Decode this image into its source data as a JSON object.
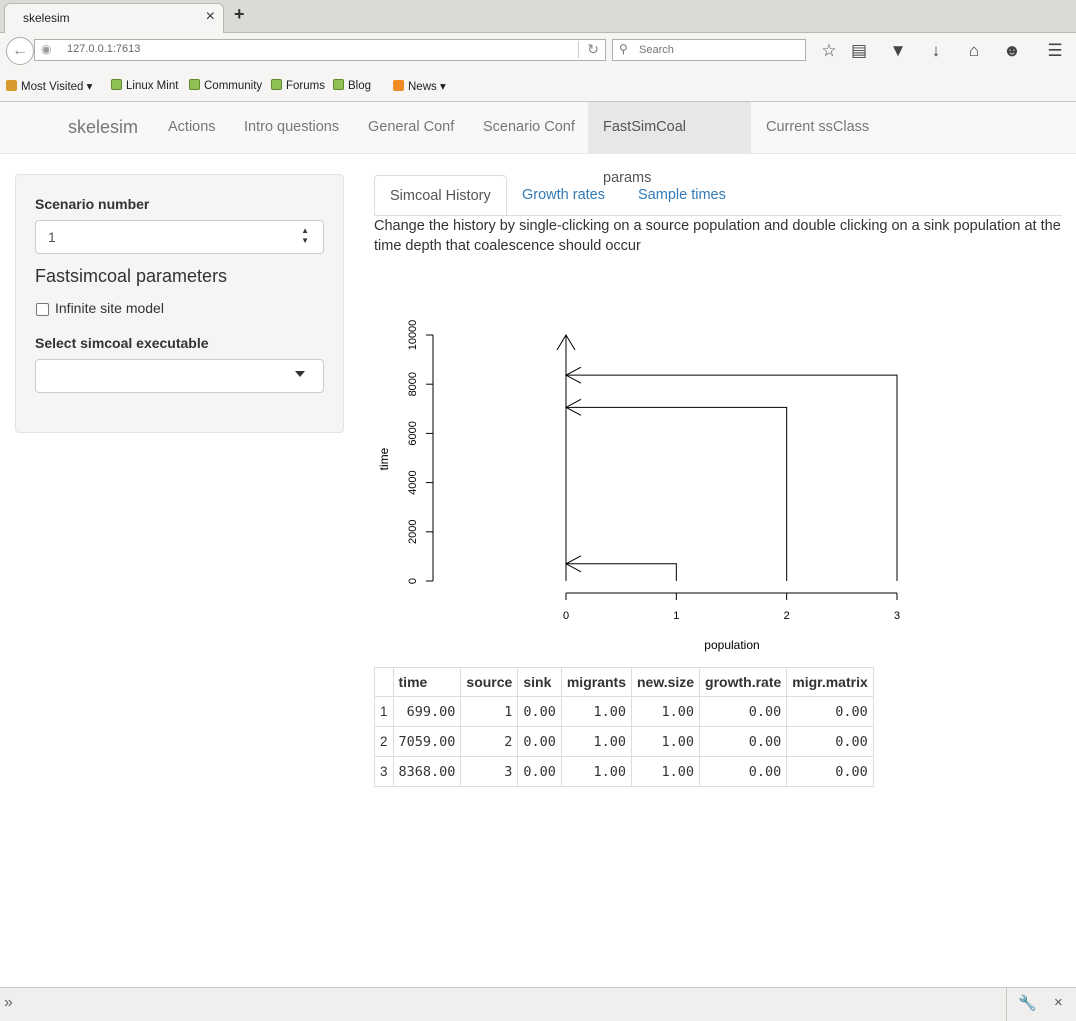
{
  "browser": {
    "tab_title": "skelesim",
    "tab_close": "×",
    "new_tab": "+",
    "url": "127.0.0.1:7613",
    "search_placeholder": "Search",
    "bookmarks": [
      "Most Visited",
      "Linux Mint",
      "Community",
      "Forums",
      "Blog",
      "News"
    ]
  },
  "app": {
    "brand": "skelesim",
    "nav": [
      "Actions",
      "Intro questions",
      "General Conf",
      "Scenario Conf",
      "FastSimCoal params",
      "Current ssClass"
    ],
    "active_nav": "FastSimCoal params"
  },
  "sidebar": {
    "scenario_label": "Scenario number",
    "scenario_value": "1",
    "section_title": "Fastsimcoal parameters",
    "infinite_site_label": "Infinite site model",
    "infinite_site_checked": false,
    "executable_label": "Select simcoal executable",
    "executable_value": ""
  },
  "tabs": [
    "Simcoal History",
    "Growth rates",
    "Sample times"
  ],
  "active_tab": "Simcoal History",
  "instruction": "Change the history by single-clicking on a source population and double clicking on a sink population at the time depth that coalescence should occur",
  "chart_data": {
    "type": "line",
    "xlabel": "population",
    "ylabel": "time",
    "xlim": [
      0,
      3
    ],
    "ylim": [
      0,
      10000
    ],
    "x_ticks": [
      "0",
      "1",
      "2",
      "3"
    ],
    "y_ticks": [
      "0",
      "2000",
      "4000",
      "6000",
      "8000",
      "10000"
    ],
    "lineages": [
      {
        "source": 1,
        "sink": 0,
        "time": 699
      },
      {
        "source": 2,
        "sink": 0,
        "time": 7059
      },
      {
        "source": 3,
        "sink": 0,
        "time": 8368
      }
    ]
  },
  "table": {
    "headers": [
      "",
      "time",
      "source",
      "sink",
      "migrants",
      "new.size",
      "growth.rate",
      "migr.matrix"
    ],
    "rows": [
      [
        "1",
        "699.00",
        "1",
        "0.00",
        "1.00",
        "1.00",
        "0.00",
        "0.00"
      ],
      [
        "2",
        "7059.00",
        "2",
        "0.00",
        "1.00",
        "1.00",
        "0.00",
        "0.00"
      ],
      [
        "3",
        "8368.00",
        "3",
        "0.00",
        "1.00",
        "1.00",
        "0.00",
        "0.00"
      ]
    ]
  },
  "colors": {
    "link": "#337ab7",
    "nav_active_bg": "#e7e7e7"
  }
}
